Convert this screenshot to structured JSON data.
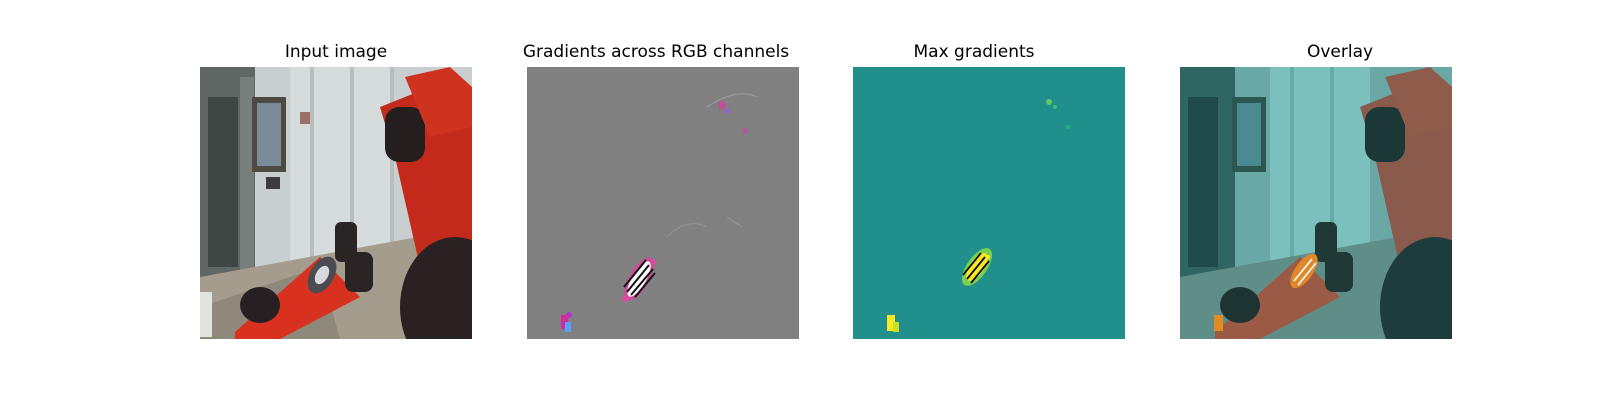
{
  "figure": {
    "panels": [
      {
        "title": "Input image"
      },
      {
        "title": "Gradients across RGB channels"
      },
      {
        "title": "Max gradients"
      },
      {
        "title": "Overlay"
      }
    ]
  },
  "colors": {
    "gray_background": "#808080",
    "viridis_low": "#21908d",
    "viridis_high": "#fde725",
    "robot_red": "#d8311f",
    "overlay_teal": "#2a8a86"
  }
}
